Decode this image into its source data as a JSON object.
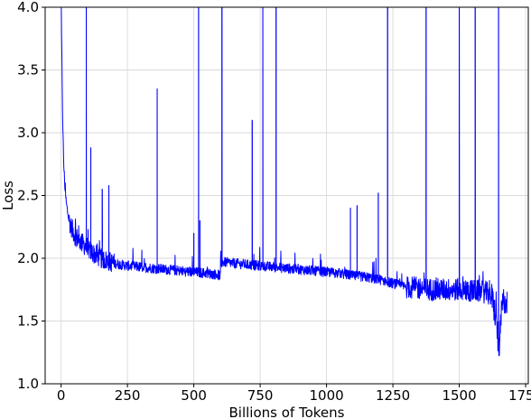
{
  "chart_data": {
    "type": "line",
    "title": "",
    "xlabel": "Billions of Tokens",
    "ylabel": "Loss",
    "xlim": [
      -60,
      1760
    ],
    "ylim": [
      1.0,
      4.0
    ],
    "x_ticks": [
      0,
      250,
      500,
      750,
      1000,
      1250,
      1500,
      1750
    ],
    "y_ticks": [
      1.0,
      1.5,
      2.0,
      2.5,
      3.0,
      3.5,
      4.0
    ],
    "x_tick_labels": [
      "0",
      "250",
      "500",
      "750",
      "1000",
      "1250",
      "1500",
      "1750"
    ],
    "y_tick_labels": [
      "1.0",
      "1.5",
      "2.0",
      "2.5",
      "3.0",
      "3.5",
      "4.0"
    ],
    "grid": true,
    "line_color": "#0000ff",
    "series": [
      {
        "x": [
          0,
          3,
          6,
          10,
          15,
          20,
          30,
          40,
          50,
          60,
          70,
          80,
          100,
          120,
          150,
          200,
          250,
          300,
          350,
          400,
          450,
          500,
          550,
          590,
          600,
          603,
          610,
          650,
          700,
          750,
          800,
          850,
          900,
          950,
          1000,
          1050,
          1100,
          1150,
          1200,
          1250,
          1300,
          1350,
          1400,
          1450,
          1500,
          1550,
          1600,
          1620,
          1630,
          1640,
          1650,
          1660,
          1670,
          1680
        ],
        "y": [
          4.0,
          3.6,
          3.1,
          2.75,
          2.55,
          2.43,
          2.3,
          2.24,
          2.19,
          2.16,
          2.14,
          2.12,
          2.08,
          2.04,
          2.0,
          1.96,
          1.94,
          1.93,
          1.92,
          1.91,
          1.9,
          1.89,
          1.88,
          1.87,
          1.86,
          1.96,
          1.97,
          1.96,
          1.95,
          1.94,
          1.93,
          1.92,
          1.91,
          1.9,
          1.89,
          1.88,
          1.86,
          1.85,
          1.83,
          1.8,
          1.77,
          1.76,
          1.75,
          1.75,
          1.75,
          1.74,
          1.73,
          1.7,
          1.62,
          1.5,
          1.25,
          1.6,
          1.68,
          1.62
        ],
        "spikes": [
          {
            "x": 95,
            "y": 4.0
          },
          {
            "x": 112,
            "y": 2.88
          },
          {
            "x": 155,
            "y": 2.55
          },
          {
            "x": 180,
            "y": 2.58
          },
          {
            "x": 362,
            "y": 3.35
          },
          {
            "x": 500,
            "y": 2.2
          },
          {
            "x": 518,
            "y": 4.0
          },
          {
            "x": 523,
            "y": 2.3
          },
          {
            "x": 606,
            "y": 4.0
          },
          {
            "x": 720,
            "y": 3.1
          },
          {
            "x": 760,
            "y": 4.0
          },
          {
            "x": 810,
            "y": 4.0
          },
          {
            "x": 1090,
            "y": 2.4
          },
          {
            "x": 1115,
            "y": 2.42
          },
          {
            "x": 1195,
            "y": 2.52
          },
          {
            "x": 1230,
            "y": 4.0
          },
          {
            "x": 1375,
            "y": 4.0
          },
          {
            "x": 1500,
            "y": 4.0
          },
          {
            "x": 1560,
            "y": 4.0
          },
          {
            "x": 1648,
            "y": 4.0
          }
        ]
      }
    ]
  }
}
